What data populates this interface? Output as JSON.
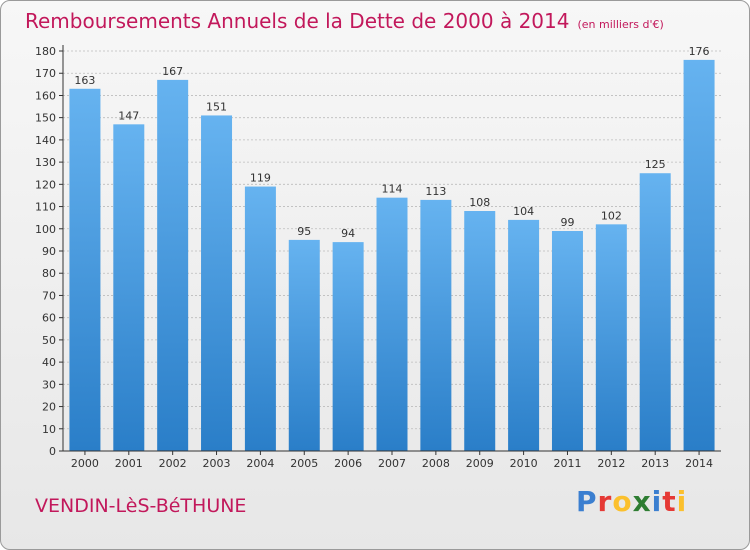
{
  "header": {
    "title": "Remboursements Annuels de la Dette de 2000 à 2014",
    "unit": "(en milliers d'€)"
  },
  "footer": {
    "commune": "VENDIN-LèS-BéTHUNE",
    "logo_letters": [
      "P",
      "r",
      "o",
      "x",
      "i",
      "t",
      "i"
    ],
    "logo_colors": [
      "#3b7fd0",
      "#e53935",
      "#fbc02d",
      "#2e7d32",
      "#3b7fd0",
      "#e53935",
      "#fbc02d"
    ]
  },
  "colors": {
    "bar_light": "#66b3f0",
    "bar_dark": "#2a7ec8",
    "axis": "#333333",
    "grid": "#bcbcbc",
    "label": "#333333"
  },
  "chart_data": {
    "type": "bar",
    "categories": [
      "2000",
      "2001",
      "2002",
      "2003",
      "2004",
      "2005",
      "2006",
      "2007",
      "2008",
      "2009",
      "2010",
      "2011",
      "2012",
      "2013",
      "2014"
    ],
    "values": [
      163,
      147,
      167,
      151,
      119,
      95,
      94,
      114,
      113,
      108,
      104,
      99,
      102,
      125,
      176
    ],
    "ylim": [
      0,
      180
    ],
    "yticks": [
      0,
      10,
      20,
      30,
      40,
      50,
      60,
      70,
      80,
      90,
      100,
      110,
      120,
      130,
      140,
      150,
      160,
      170,
      180
    ],
    "grid": true,
    "title": "Remboursements Annuels de la Dette de 2000 à 2014",
    "xlabel": "",
    "ylabel": ""
  }
}
